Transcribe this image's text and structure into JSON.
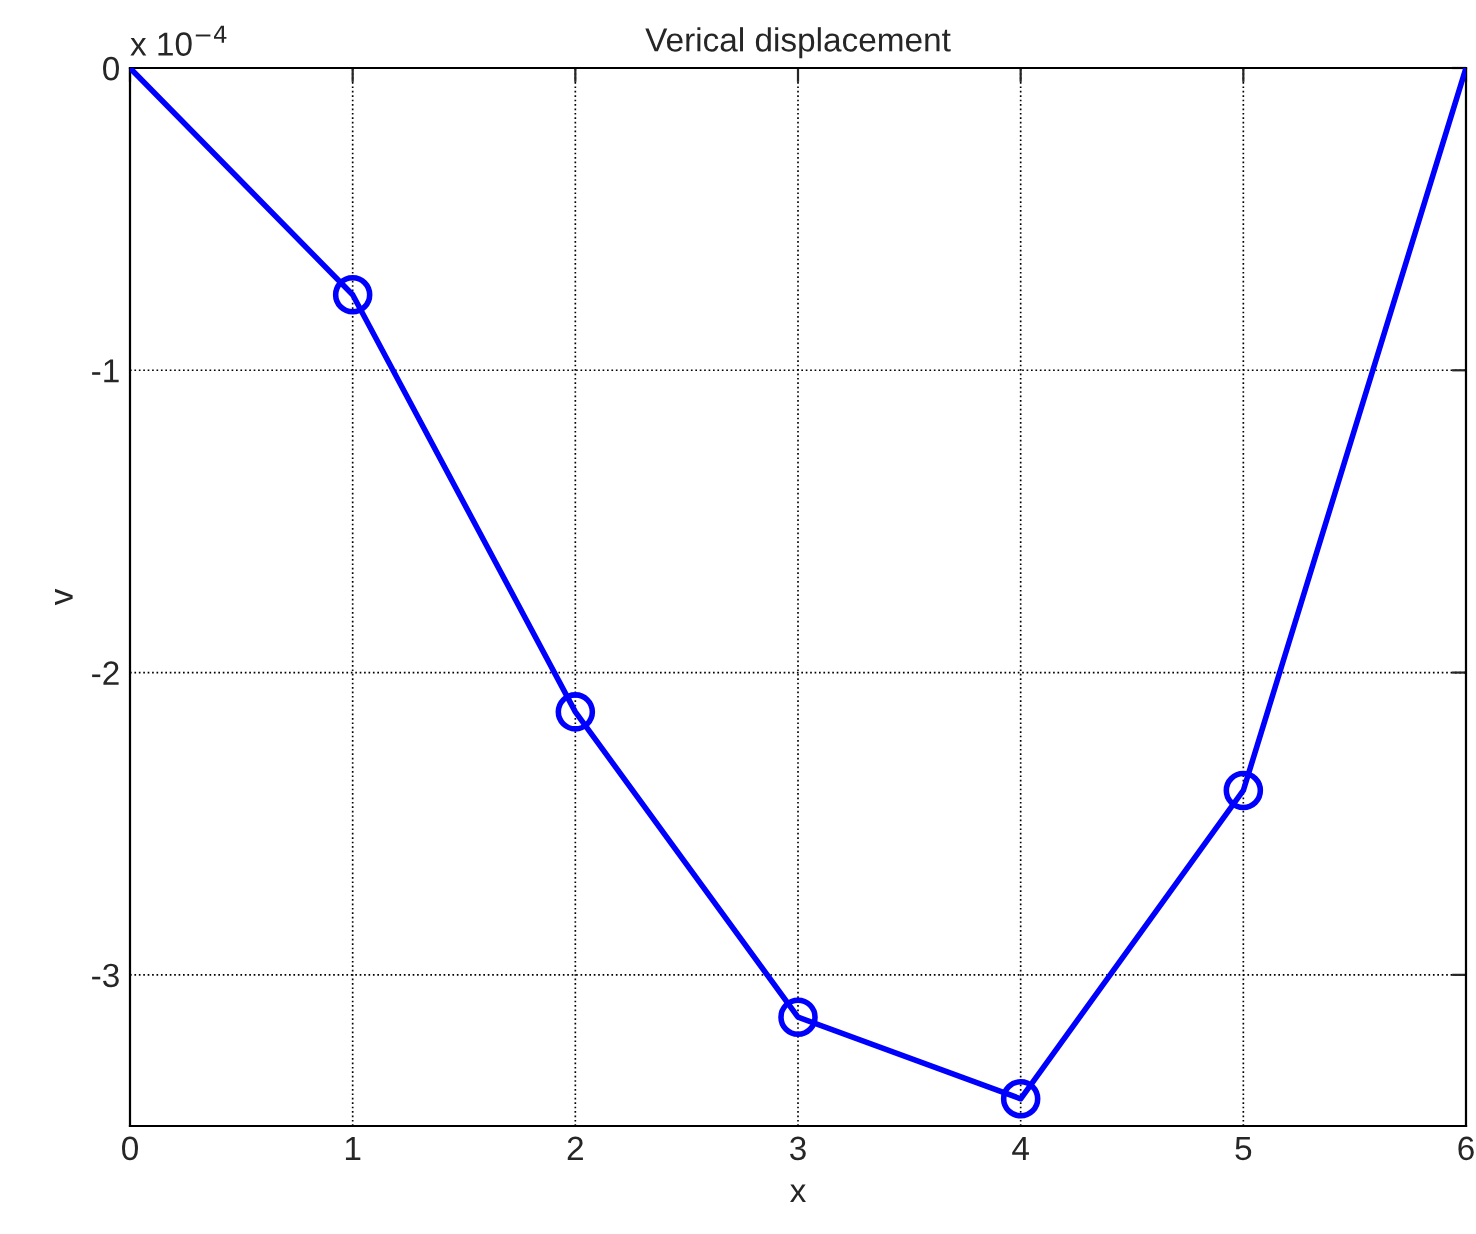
{
  "chart_data": {
    "type": "line",
    "title": "Verical displacement",
    "xlabel": "x",
    "ylabel": "v",
    "series": [
      {
        "x": [
          0,
          1,
          2,
          3,
          4,
          5,
          6
        ],
        "values": [
          0,
          -0.75,
          -2.13,
          -3.14,
          -3.41,
          -2.39,
          0
        ],
        "color": "#0000ff",
        "marker": "none",
        "line_style": "solid"
      },
      {
        "type": "scatter",
        "x": [
          1,
          2,
          3,
          4,
          5
        ],
        "values": [
          -0.75,
          -2.13,
          -3.14,
          -3.41,
          -2.39
        ],
        "color": "#0000ff",
        "marker": "circle"
      }
    ],
    "xlim": [
      0,
      6
    ],
    "xticks": [
      0,
      1,
      2,
      3,
      4,
      5,
      6
    ],
    "ylim": [
      -3.5,
      0
    ],
    "yticks": [
      -3,
      -2,
      -1,
      0
    ],
    "annotations": [
      "x 10$^{−4}$"
    ],
    "grid": true,
    "legend": false
  }
}
